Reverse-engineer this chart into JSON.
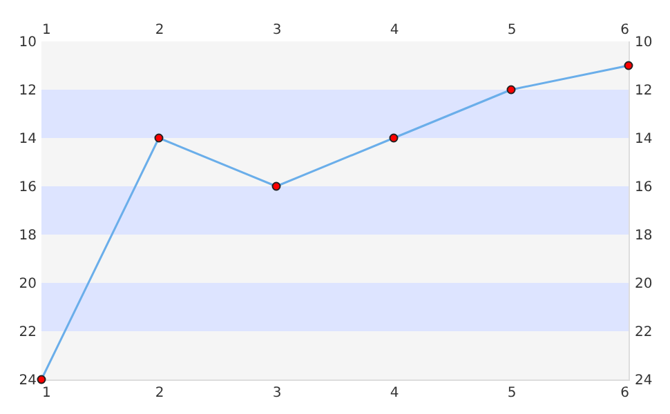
{
  "chart_data": {
    "type": "line",
    "x": [
      1,
      2,
      3,
      4,
      5,
      6
    ],
    "series": [
      {
        "color": "#6aaeea",
        "values": [
          24,
          14,
          16,
          14,
          12,
          11
        ]
      }
    ],
    "xlim": [
      1,
      6
    ],
    "xticks": [
      1,
      2,
      3,
      4,
      5,
      6
    ],
    "x2lim": [
      1,
      6
    ],
    "x2ticks": [
      1,
      2,
      3,
      4,
      5,
      6
    ],
    "ylim": [
      24,
      10
    ],
    "yticks": [
      10,
      12,
      14,
      16,
      18,
      20,
      22,
      24
    ],
    "y2lim": [
      24,
      10
    ],
    "y2ticks": [
      10,
      12,
      14,
      16,
      18,
      20,
      22,
      24
    ],
    "bands": [
      {
        "axis": "y",
        "from": 10,
        "to": 12,
        "color": "#f5f5f5"
      },
      {
        "axis": "y",
        "from": 12,
        "to": 14,
        "color": "#dde4ff"
      },
      {
        "axis": "y",
        "from": 14,
        "to": 16,
        "color": "#f5f5f5"
      },
      {
        "axis": "y",
        "from": 16,
        "to": 18,
        "color": "#dde4ff"
      },
      {
        "axis": "y",
        "from": 18,
        "to": 20,
        "color": "#f5f5f5"
      },
      {
        "axis": "y",
        "from": 20,
        "to": 22,
        "color": "#dde4ff"
      },
      {
        "axis": "y",
        "from": 22,
        "to": 24,
        "color": "#f5f5f5"
      }
    ],
    "marker": "circle",
    "line_style": "solid"
  }
}
